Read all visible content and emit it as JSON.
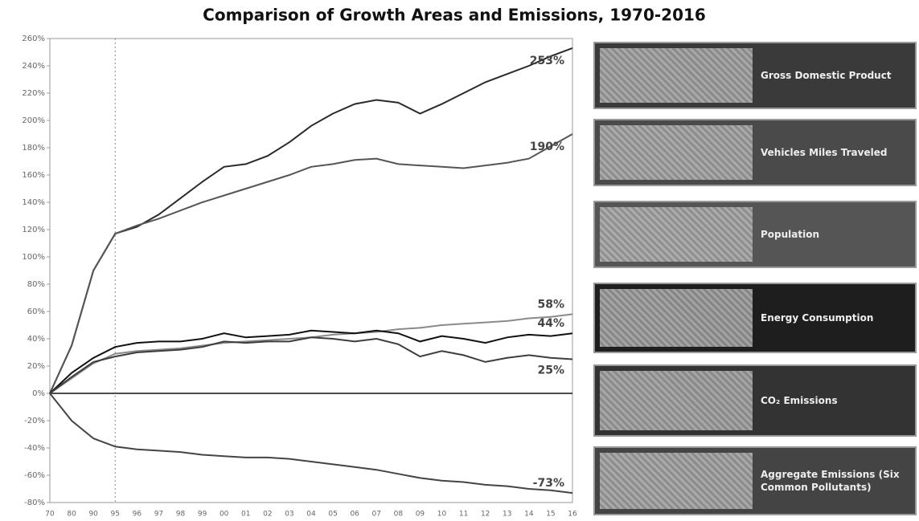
{
  "chart_data": {
    "type": "line",
    "title": "Comparison of Growth Areas and Emissions, 1970-2016",
    "categories": [
      "70",
      "80",
      "90",
      "95",
      "96",
      "97",
      "98",
      "99",
      "00",
      "01",
      "02",
      "03",
      "04",
      "05",
      "06",
      "07",
      "08",
      "09",
      "10",
      "11",
      "12",
      "13",
      "14",
      "15",
      "16"
    ],
    "vline_category": "95",
    "ylim": [
      -80,
      260
    ],
    "yticks": [
      {
        "value": -80,
        "label": "-80%"
      },
      {
        "value": -60,
        "label": "-60%"
      },
      {
        "value": -40,
        "label": "-40%"
      },
      {
        "value": -20,
        "label": "-20%"
      },
      {
        "value": 0,
        "label": "0%"
      },
      {
        "value": 20,
        "label": "20%"
      },
      {
        "value": 40,
        "label": "40%"
      },
      {
        "value": 60,
        "label": "60%"
      },
      {
        "value": 80,
        "label": "80%"
      },
      {
        "value": 100,
        "label": "100%"
      },
      {
        "value": 120,
        "label": "120%"
      },
      {
        "value": 140,
        "label": "140%"
      },
      {
        "value": 160,
        "label": "160%"
      },
      {
        "value": 180,
        "label": "180%"
      },
      {
        "value": 200,
        "label": "200%"
      },
      {
        "value": 220,
        "label": "220%"
      },
      {
        "value": 240,
        "label": "240%"
      },
      {
        "value": 260,
        "label": "260%"
      }
    ],
    "series": [
      {
        "name": "Gross Domestic Product",
        "color": "#2a2a2a",
        "panel_color": "#3a3a3a",
        "values": [
          0,
          35,
          90,
          117,
          122,
          131,
          143,
          155,
          166,
          168,
          174,
          184,
          196,
          205,
          212,
          215,
          213,
          205,
          212,
          220,
          228,
          234,
          240,
          247,
          253
        ],
        "value_labels": [
          null,
          null,
          null,
          null,
          null,
          null,
          null,
          null,
          null,
          null,
          null,
          null,
          null,
          null,
          null,
          null,
          null,
          null,
          null,
          null,
          null,
          null,
          null,
          null,
          "253%"
        ]
      },
      {
        "name": "Vehicles Miles Traveled",
        "color": "#555555",
        "panel_color": "#4a4a4a",
        "values": [
          0,
          35,
          90,
          117,
          123,
          128,
          134,
          140,
          145,
          150,
          155,
          160,
          166,
          168,
          171,
          172,
          168,
          167,
          166,
          165,
          167,
          169,
          172,
          181,
          190
        ],
        "value_labels": [
          null,
          null,
          null,
          null,
          null,
          null,
          null,
          null,
          null,
          null,
          null,
          null,
          null,
          null,
          null,
          null,
          null,
          null,
          null,
          null,
          null,
          null,
          null,
          null,
          "190%"
        ]
      },
      {
        "name": "Population",
        "color": "#8a8a8a",
        "panel_color": "#555555",
        "values": [
          0,
          11,
          22,
          29,
          31,
          32,
          33,
          35,
          37,
          38,
          39,
          40,
          41,
          43,
          44,
          45,
          47,
          48,
          50,
          51,
          52,
          53,
          55,
          56,
          58
        ],
        "value_labels": [
          null,
          null,
          null,
          null,
          null,
          null,
          null,
          null,
          null,
          null,
          null,
          null,
          null,
          null,
          null,
          null,
          null,
          null,
          null,
          null,
          null,
          null,
          null,
          null,
          "58%"
        ]
      },
      {
        "name": "Energy Consumption",
        "color": "#111111",
        "panel_color": "#1e1e1e",
        "values": [
          0,
          15,
          26,
          34,
          37,
          38,
          38,
          40,
          44,
          41,
          42,
          43,
          46,
          45,
          44,
          46,
          44,
          38,
          42,
          40,
          37,
          41,
          43,
          42,
          44
        ],
        "value_labels": [
          null,
          null,
          null,
          null,
          null,
          null,
          null,
          null,
          null,
          null,
          null,
          null,
          null,
          null,
          null,
          null,
          null,
          null,
          null,
          null,
          null,
          null,
          null,
          null,
          "44%"
        ]
      },
      {
        "name": "CO₂ Emissions",
        "color": "#3d3d3d",
        "panel_color": "#333333",
        "values": [
          0,
          12,
          23,
          27,
          30,
          31,
          32,
          34,
          38,
          37,
          38,
          38,
          41,
          40,
          38,
          40,
          36,
          27,
          31,
          28,
          23,
          26,
          28,
          26,
          25
        ],
        "value_labels": [
          null,
          null,
          null,
          null,
          null,
          null,
          null,
          null,
          null,
          null,
          null,
          null,
          null,
          null,
          null,
          null,
          null,
          null,
          null,
          null,
          null,
          null,
          null,
          null,
          "25%"
        ]
      },
      {
        "name": "Aggregate Emissions (Six Common Pollutants)",
        "color": "#444444",
        "panel_color": "#444444",
        "values": [
          0,
          -20,
          -33,
          -39,
          -41,
          -42,
          -43,
          -45,
          -46,
          -47,
          -47,
          -48,
          -50,
          -52,
          -54,
          -56,
          -59,
          -62,
          -64,
          -65,
          -67,
          -68,
          -70,
          -71,
          -73
        ],
        "value_labels": [
          null,
          null,
          null,
          null,
          null,
          null,
          null,
          null,
          null,
          null,
          null,
          null,
          null,
          null,
          null,
          null,
          null,
          null,
          null,
          null,
          null,
          null,
          null,
          null,
          "-73%"
        ]
      }
    ]
  }
}
